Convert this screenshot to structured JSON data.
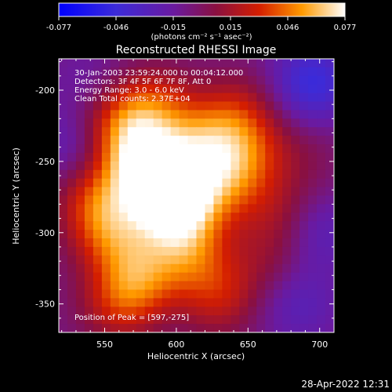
{
  "chart_data": {
    "type": "heatmap",
    "title": "Reconstructed RHESSI Image",
    "colorbar": {
      "min": -0.077,
      "max": 0.077,
      "ticks": [
        "-0.077",
        "-0.046",
        "-0.015",
        "0.015",
        "0.046",
        "0.077"
      ],
      "unit_label": "(photons cm⁻² s⁻¹ asec⁻²)"
    },
    "xlabel": "Heliocentric X (arcsec)",
    "ylabel": "Heliocentric Y (arcsec)",
    "xlim": [
      518,
      710
    ],
    "ylim": [
      -370,
      -178
    ],
    "xticks": [
      550,
      600,
      650,
      700
    ],
    "yticks": [
      -200,
      -250,
      -300,
      -350
    ],
    "peak": {
      "x": 597,
      "y": -275
    },
    "annotations": [
      "30-Jan-2003 23:59:24.000 to 00:04:12.000",
      "Detectors: 3F 4F 5F 6F 7F 8F, Att 0",
      "Energy Range: 3.0 - 6.0 keV",
      "Clean     Total counts: 2.37E+04"
    ],
    "peak_label": "Position of Peak = [597,-275]",
    "intensity_blobs": [
      {
        "x": 597,
        "y": -272,
        "v": 0.077
      },
      {
        "x": 590,
        "y": -262,
        "v": 0.055
      },
      {
        "x": 600,
        "y": -285,
        "v": 0.06
      },
      {
        "x": 575,
        "y": -250,
        "v": 0.045
      },
      {
        "x": 560,
        "y": -225,
        "v": 0.04
      },
      {
        "x": 585,
        "y": -212,
        "v": 0.035
      },
      {
        "x": 620,
        "y": -235,
        "v": 0.04
      },
      {
        "x": 630,
        "y": -265,
        "v": 0.038
      },
      {
        "x": 650,
        "y": -245,
        "v": 0.03
      },
      {
        "x": 645,
        "y": -215,
        "v": 0.025
      },
      {
        "x": 555,
        "y": -300,
        "v": 0.04
      },
      {
        "x": 545,
        "y": -275,
        "v": 0.035
      },
      {
        "x": 575,
        "y": -330,
        "v": 0.04
      },
      {
        "x": 610,
        "y": -315,
        "v": 0.035
      },
      {
        "x": 630,
        "y": -345,
        "v": 0.03
      },
      {
        "x": 560,
        "y": -350,
        "v": 0.03
      },
      {
        "x": 670,
        "y": -285,
        "v": 0.02
      },
      {
        "x": 665,
        "y": -320,
        "v": 0.015
      },
      {
        "x": 690,
        "y": -245,
        "v": 0.01
      },
      {
        "x": 695,
        "y": -195,
        "v": -0.04
      },
      {
        "x": 700,
        "y": -300,
        "v": -0.02
      },
      {
        "x": 530,
        "y": -240,
        "v": -0.02
      },
      {
        "x": 540,
        "y": -195,
        "v": -0.01
      },
      {
        "x": 685,
        "y": -350,
        "v": -0.02
      }
    ]
  },
  "footer": {
    "timestamp": "28-Apr-2022 12:31"
  }
}
